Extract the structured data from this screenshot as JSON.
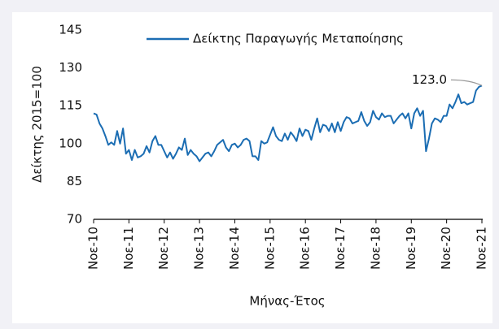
{
  "chart_data": {
    "type": "line",
    "y_axis_label": "Δείκτης 2015=100",
    "x_axis_label": "Μήνας-Έτος",
    "categories": [
      "Νοε-10",
      null,
      null,
      null,
      null,
      null,
      null,
      null,
      null,
      null,
      null,
      null,
      "Νοε-11",
      null,
      null,
      null,
      null,
      null,
      null,
      null,
      null,
      null,
      null,
      null,
      "Νοε-12",
      null,
      null,
      null,
      null,
      null,
      null,
      null,
      null,
      null,
      null,
      null,
      "Νοε-13",
      null,
      null,
      null,
      null,
      null,
      null,
      null,
      null,
      null,
      null,
      null,
      "Νοε-14",
      null,
      null,
      null,
      null,
      null,
      null,
      null,
      null,
      null,
      null,
      null,
      "Νοε-15",
      null,
      null,
      null,
      null,
      null,
      null,
      null,
      null,
      null,
      null,
      null,
      "Νοε-16",
      null,
      null,
      null,
      null,
      null,
      null,
      null,
      null,
      null,
      null,
      null,
      "Νοε-17",
      null,
      null,
      null,
      null,
      null,
      null,
      null,
      null,
      null,
      null,
      null,
      "Νοε-18",
      null,
      null,
      null,
      null,
      null,
      null,
      null,
      null,
      null,
      null,
      null,
      "Νοε-19",
      null,
      null,
      null,
      null,
      null,
      null,
      null,
      null,
      null,
      null,
      null,
      "Νοε-20",
      null,
      null,
      null,
      null,
      null,
      null,
      null,
      null,
      null,
      null,
      null,
      "Νοε-21"
    ],
    "series": [
      {
        "name": "Δείκτης Παραγωγής Μεταποίησης",
        "color": "#1b6db3",
        "values": [
          112,
          111.5,
          108,
          106,
          103,
          99.5,
          100.5,
          99.5,
          105,
          100,
          106,
          96,
          97.5,
          93.5,
          97.5,
          94.5,
          95,
          96,
          99,
          96.5,
          101,
          103,
          99.5,
          99.5,
          97,
          94.5,
          96.5,
          94,
          96,
          98.5,
          97.5,
          102,
          95.5,
          97.5,
          96,
          95,
          93,
          94.5,
          96,
          96.5,
          95,
          97,
          99.5,
          100.5,
          101.5,
          98.5,
          97,
          99.5,
          100,
          98.5,
          99.5,
          101.5,
          102,
          101,
          95,
          95,
          93.5,
          101,
          100,
          100.5,
          103.5,
          106.5,
          103,
          101.5,
          101,
          104,
          101.5,
          104.5,
          103,
          101,
          106,
          103,
          105.5,
          105,
          101.5,
          106,
          110,
          104.5,
          107.5,
          107,
          105,
          108,
          104.5,
          108.5,
          105,
          108.5,
          110.5,
          110,
          108,
          108.5,
          109,
          112.5,
          109,
          107,
          108.5,
          113,
          110.5,
          109.5,
          112,
          110.5,
          111,
          111,
          108,
          109.5,
          111,
          112,
          110,
          112,
          106,
          112,
          114,
          111,
          113,
          97,
          102,
          108,
          110,
          109.5,
          108.5,
          111,
          111,
          115.5,
          114,
          116.5,
          119.5,
          116,
          116.5,
          115.5,
          116,
          116.5,
          121,
          122.5,
          123
        ],
        "value_labels": [
          null,
          null,
          null,
          null,
          null,
          null,
          null,
          null,
          null,
          null,
          null,
          null,
          null,
          null,
          null,
          null,
          null,
          null,
          null,
          null,
          null,
          null,
          null,
          null,
          null,
          null,
          null,
          null,
          null,
          null,
          null,
          null,
          null,
          null,
          null,
          null,
          null,
          null,
          null,
          null,
          null,
          null,
          null,
          null,
          null,
          null,
          null,
          null,
          null,
          null,
          null,
          null,
          null,
          null,
          null,
          null,
          null,
          null,
          null,
          null,
          null,
          null,
          null,
          null,
          null,
          null,
          null,
          null,
          null,
          null,
          null,
          null,
          null,
          null,
          null,
          null,
          null,
          null,
          null,
          null,
          null,
          null,
          null,
          null,
          null,
          null,
          null,
          null,
          null,
          null,
          null,
          null,
          null,
          null,
          null,
          null,
          null,
          null,
          null,
          null,
          null,
          null,
          null,
          null,
          null,
          null,
          null,
          null,
          null,
          null,
          null,
          null,
          null,
          null,
          null,
          null,
          null,
          null,
          null,
          null,
          null,
          null,
          null,
          null,
          null,
          null,
          null,
          null,
          null,
          null,
          null,
          null,
          "123.0"
        ]
      }
    ],
    "ylim": [
      70,
      145
    ],
    "yticks": [
      70,
      85,
      100,
      115,
      130,
      145
    ],
    "grid": false,
    "legend": "top"
  }
}
